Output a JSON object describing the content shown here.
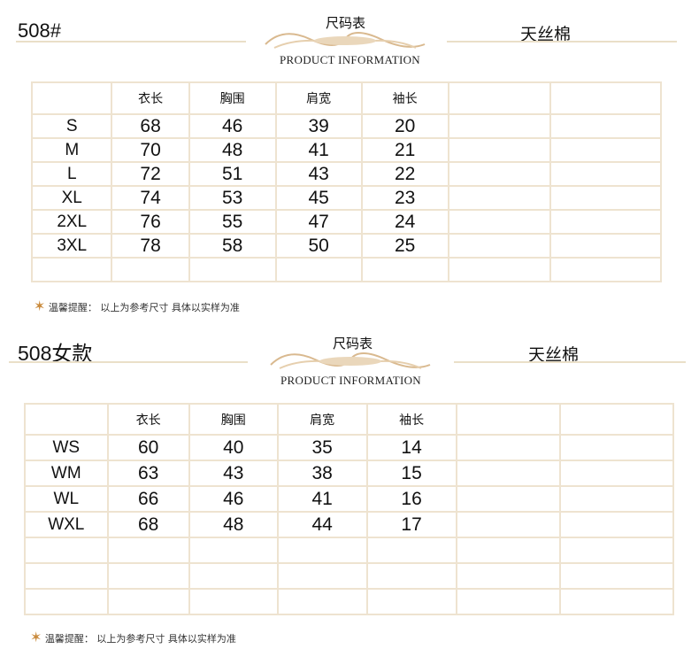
{
  "header_common": {
    "title": "尺码表",
    "subtitle": "PRODUCT INFORMATION"
  },
  "section1": {
    "code": "508#",
    "fabric": "天丝棉",
    "columns": [
      "",
      "衣长",
      "胸围",
      "肩宽",
      "袖长",
      "",
      ""
    ],
    "rows": [
      [
        "S",
        "68",
        "46",
        "39",
        "20"
      ],
      [
        "M",
        "70",
        "48",
        "41",
        "21"
      ],
      [
        "L",
        "72",
        "51",
        "43",
        "22"
      ],
      [
        "XL",
        "74",
        "53",
        "45",
        "23"
      ],
      [
        "2XL",
        "76",
        "55",
        "47",
        "24"
      ],
      [
        "3XL",
        "78",
        "58",
        "50",
        "25"
      ]
    ],
    "note": "温馨提醒： 以上为参考尺寸   具体以实样为准"
  },
  "section2": {
    "code": "508女款",
    "fabric": "天丝棉",
    "columns": [
      "",
      "衣长",
      "胸围",
      "肩宽",
      "袖长",
      "",
      ""
    ],
    "rows": [
      [
        "WS",
        "60",
        "40",
        "35",
        "14"
      ],
      [
        "WM",
        "63",
        "43",
        "38",
        "15"
      ],
      [
        "WL",
        "66",
        "46",
        "41",
        "16"
      ],
      [
        "WXL",
        "68",
        "48",
        "44",
        "17"
      ]
    ],
    "note": "温馨提醒： 以上为参考尺寸   具体以实样为准"
  },
  "colors": {
    "rule": "#eadfc8",
    "ornament": "#d9b98f",
    "star": "#c98a3c"
  },
  "icons": {
    "star": "star-icon",
    "ornament": "scroll-ornament"
  }
}
